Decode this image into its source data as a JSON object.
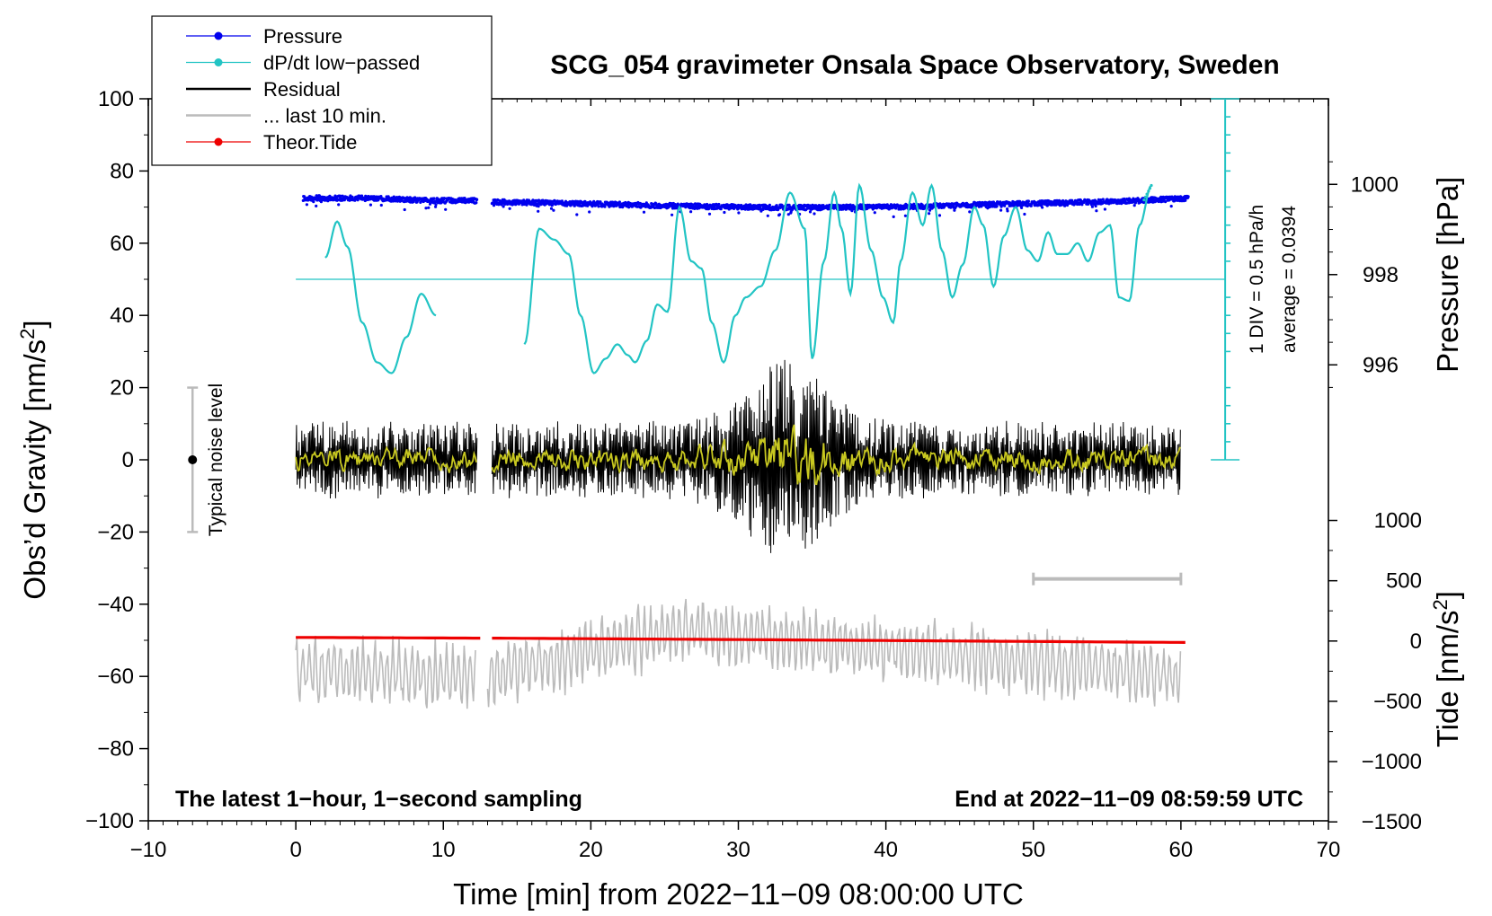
{
  "chart_data": {
    "type": "line",
    "title": "SCG_054 gravimeter Onsala Space Observatory, Sweden",
    "xlabel": "Time [min] from 2022−11−09 08:00:00 UTC",
    "ylabel": "Obs’d Gravity [nm/s",
    "ylabel_sup": "2",
    "ylabel_end": "]",
    "xlim": [
      -10,
      70
    ],
    "ylim": [
      -100,
      100
    ],
    "x_ticks": [
      -10,
      0,
      10,
      20,
      30,
      40,
      50,
      60,
      70
    ],
    "x_tick_labels": [
      "−10",
      "0",
      "10",
      "20",
      "30",
      "40",
      "50",
      "60",
      "70"
    ],
    "y_ticks": [
      -100,
      -80,
      -60,
      -40,
      -20,
      0,
      20,
      40,
      60,
      80,
      100
    ],
    "y_tick_labels": [
      "−100",
      "−80",
      "−60",
      "−40",
      "−20",
      "0",
      "20",
      "40",
      "60",
      "80",
      "100"
    ],
    "pressure_axis": {
      "label": "Pressure [hPa]",
      "ticks": [
        {
          "value": 1000,
          "at_gravity": 76.3,
          "label": "1000"
        },
        {
          "value": 998,
          "at_gravity": 51.3,
          "label": "998"
        },
        {
          "value": 996,
          "at_gravity": 26.3,
          "label": "996"
        }
      ]
    },
    "tide_axis": {
      "label": "Tide [nm/s",
      "label_sup": "2",
      "label_end": "]",
      "ticks": [
        {
          "value": 1000,
          "at_gravity": -16.8,
          "label": "1000"
        },
        {
          "value": 500,
          "at_gravity": -33.5,
          "label": "500"
        },
        {
          "value": 0,
          "at_gravity": -50.2,
          "label": "0"
        },
        {
          "value": -500,
          "at_gravity": -66.9,
          "label": "−500"
        },
        {
          "value": -1000,
          "at_gravity": -83.6,
          "label": "−1000"
        },
        {
          "value": -1500,
          "at_gravity": -100.3,
          "label": "−1500"
        }
      ]
    },
    "legend": {
      "position": "top-left",
      "entries": [
        {
          "label": "Pressure",
          "color": "#0000ee",
          "marker": true
        },
        {
          "label": "dP/dt low−passed",
          "color": "#22c4c4",
          "marker": true
        },
        {
          "label": "Residual",
          "color": "#000000",
          "marker": false
        },
        {
          "label": "... last 10 min.",
          "color": "#bbbbbb",
          "marker": false
        },
        {
          "label": "Theor.Tide",
          "color": "#ee0000",
          "marker": true
        }
      ]
    },
    "noise_bar": {
      "label": "Typical noise level",
      "x": -7,
      "center": 0,
      "low": -20,
      "high": 20
    },
    "dpdt_scale": {
      "label1": "1 DIV = 0.5 hPa/h",
      "label2": "average = 0.0394",
      "x": 63,
      "base": 0,
      "top": 100,
      "zero_level": 50
    },
    "last10_bar": {
      "x_start": 50,
      "x_end": 60,
      "y": -33
    },
    "note_left": "The latest 1−hour, 1−second sampling",
    "note_right": "End at 2022−11−09 08:59:59 UTC",
    "series": [
      {
        "name": "Pressure",
        "color": "#0000ee",
        "x": [
          0.5,
          3,
          6,
          9,
          12,
          13.5,
          17,
          20,
          23,
          26,
          29,
          32,
          35,
          38,
          41,
          44,
          47,
          50,
          53,
          56,
          58,
          60.5
        ],
        "y": [
          72.5,
          72.5,
          72.3,
          71.8,
          71.8,
          71.4,
          71.2,
          70.9,
          70.6,
          70.3,
          70.1,
          69.9,
          69.9,
          70.0,
          70.1,
          70.4,
          70.7,
          71.0,
          71.3,
          71.6,
          72.0,
          72.4
        ]
      },
      {
        "name": "dP/dt low-passed (segment 1)",
        "color": "#22c4c4",
        "x": [
          2,
          2.8,
          3.5,
          4.5,
          5.5,
          6.5,
          7.5,
          8.5,
          9.5
        ],
        "y": [
          56,
          66,
          59,
          38,
          27,
          24,
          34,
          46,
          40
        ]
      },
      {
        "name": "dP/dt low-passed (segment 2)",
        "color": "#22c4c4",
        "x": [
          15.5,
          16.5,
          17.5,
          18.5,
          19.3,
          20.2,
          21,
          21.8,
          22.5,
          23,
          23.8,
          24.5,
          25.2,
          26,
          26.8,
          27.5,
          28.2,
          29,
          29.8,
          30.5,
          31.5,
          32.5,
          33.5,
          34.5,
          35,
          35.8,
          36.5,
          37,
          37.6,
          38.2,
          39,
          39.8,
          40.5,
          41,
          41.8,
          42.5,
          43.1,
          43.8,
          44.5,
          45.2,
          46,
          46.6,
          47.3,
          48,
          48.8,
          49.6,
          50.3,
          51,
          51.6,
          52.3,
          53,
          53.7,
          54.5,
          55.2,
          55.8,
          56.5,
          57.2,
          58
        ],
        "y": [
          32,
          64,
          61,
          57,
          40,
          24,
          28,
          32,
          29,
          27,
          33,
          43,
          41,
          70,
          55,
          53,
          38,
          27,
          40,
          45,
          48,
          58,
          74,
          64,
          28,
          55,
          74,
          64,
          46,
          76,
          58,
          45,
          38,
          55,
          74,
          65,
          76,
          58,
          45,
          54,
          70,
          65,
          48,
          62,
          70,
          58,
          55,
          63,
          57,
          57,
          60,
          55,
          63,
          65,
          45,
          44,
          65,
          76
        ]
      },
      {
        "name": "Residual",
        "color": "#000000",
        "x": [
          0,
          12.3,
          13.3,
          25,
          27,
          29,
          30,
          31,
          32,
          33,
          34,
          35,
          36,
          37,
          38,
          40,
          45,
          50,
          55,
          60
        ],
        "amplitude": [
          10,
          10,
          10,
          10,
          12,
          15,
          18,
          22,
          25,
          28,
          27,
          25,
          20,
          16,
          13,
          11,
          10,
          10,
          10,
          10
        ]
      },
      {
        "name": "Residual smoothed",
        "color": "#c8c820",
        "x": [
          0,
          60
        ],
        "y": [
          0,
          0
        ]
      },
      {
        "name": "Last 10 min.",
        "color": "#bbbbbb",
        "x": [
          0,
          12,
          13,
          26.3,
          60
        ],
        "y": [
          -58,
          -60,
          -60,
          -47,
          -60
        ],
        "spread": 8
      },
      {
        "name": "Theor.Tide",
        "color": "#ee0000",
        "x": [
          0,
          12.5,
          13.3,
          30,
          60.5
        ],
        "y": [
          -49.2,
          -49.4,
          -49.4,
          -49.8,
          -50.6
        ]
      }
    ]
  }
}
